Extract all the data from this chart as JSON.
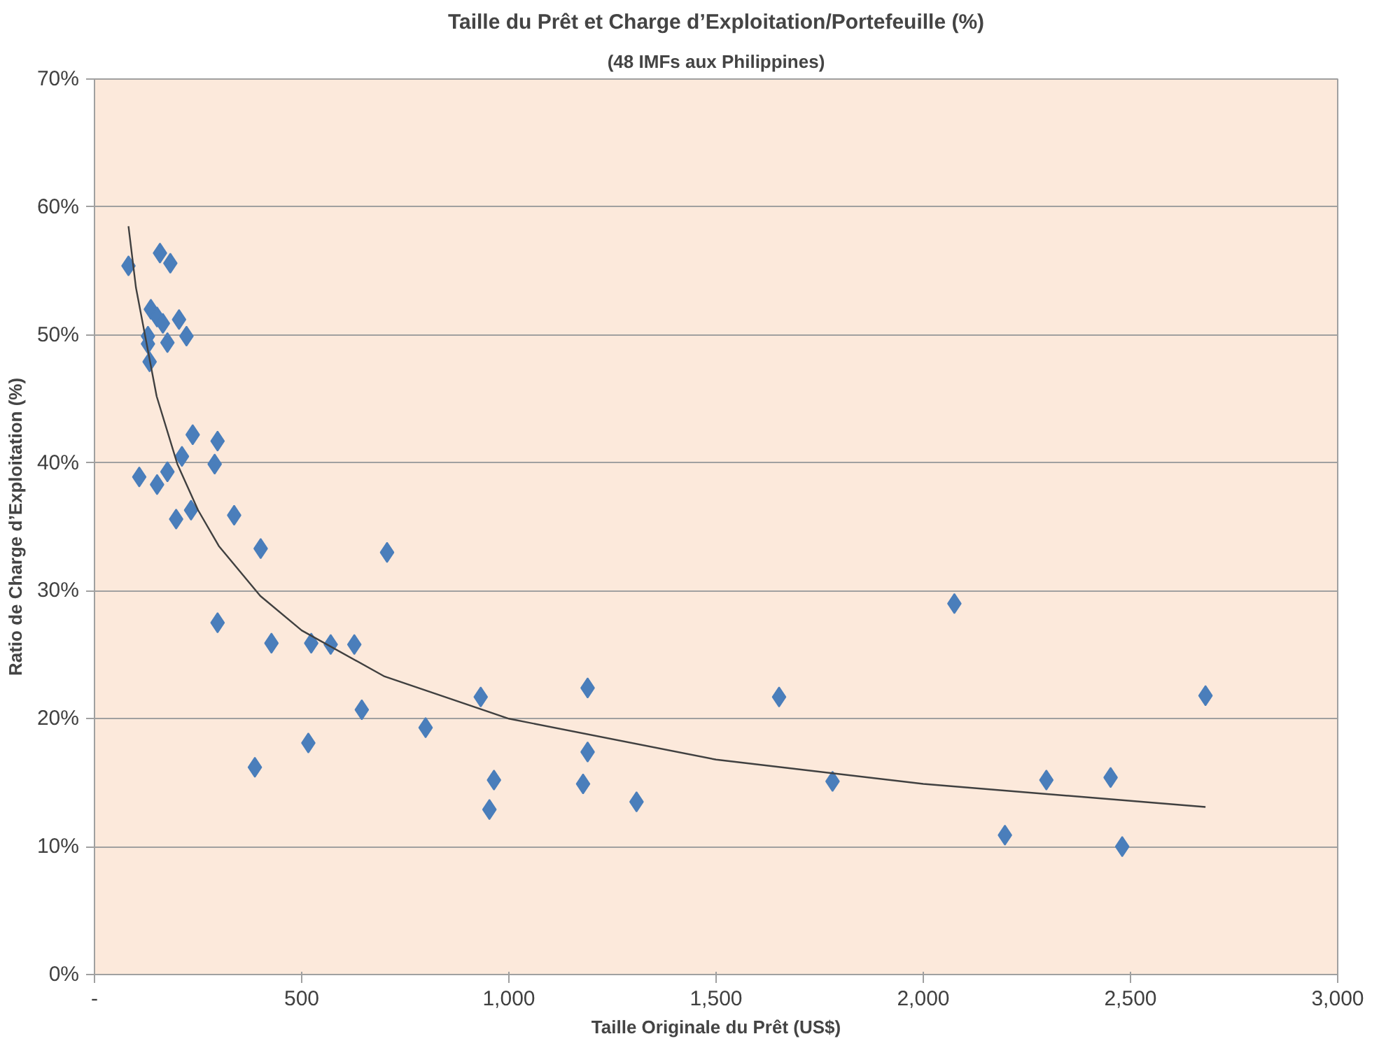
{
  "chart_data": {
    "type": "scatter",
    "title": "Taille du Prêt et Charge d’Exploitation/Portefeuille (%)",
    "subtitle": "(48 IMFs aux Philippines)",
    "xlabel": "Taille Originale du Prêt (US$)",
    "ylabel": "Ratio de Charge d’Exploitation (%)",
    "grid": "y",
    "xlim": [
      0,
      3000
    ],
    "xticks": [
      {
        "value": 0,
        "label": "-"
      },
      {
        "value": 500,
        "label": "500"
      },
      {
        "value": 1000,
        "label": "1,000"
      },
      {
        "value": 1500,
        "label": "1,500"
      },
      {
        "value": 2000,
        "label": "2,000"
      },
      {
        "value": 2500,
        "label": "2,500"
      },
      {
        "value": 3000,
        "label": "3,000"
      }
    ],
    "ylim": [
      0,
      70
    ],
    "yticks": [
      {
        "value": 0,
        "label": "0%"
      },
      {
        "value": 10,
        "label": "10%"
      },
      {
        "value": 20,
        "label": "20%"
      },
      {
        "value": 30,
        "label": "30%"
      },
      {
        "value": 40,
        "label": "40%"
      },
      {
        "value": 50,
        "label": "50%"
      },
      {
        "value": 60,
        "label": "60%"
      },
      {
        "value": 70,
        "label": "70%"
      }
    ],
    "series": [
      {
        "marker": "diamond",
        "color": "#4a7ebb",
        "x": [
          82,
          158,
          183,
          136,
          151,
          165,
          204,
          129,
          129,
          176,
          222,
          133,
          108,
          151,
          176,
          237,
          211,
          297,
          290,
          197,
          233,
          337,
          401,
          706,
          297,
          427,
          523,
          570,
          627,
          645,
          799,
          516,
          387,
          953,
          964,
          932,
          1190,
          1190,
          1179,
          1308,
          1652,
          1781,
          2075,
          2197,
          2297,
          2452,
          2480,
          2681
        ],
        "values": [
          55.4,
          56.4,
          55.6,
          52.0,
          51.4,
          50.9,
          51.2,
          49.9,
          49.3,
          49.4,
          49.9,
          47.9,
          38.9,
          38.3,
          39.3,
          42.2,
          40.5,
          41.7,
          39.9,
          35.6,
          36.3,
          35.9,
          33.3,
          33.0,
          27.5,
          25.9,
          25.9,
          25.8,
          25.8,
          20.7,
          19.3,
          18.1,
          16.2,
          12.9,
          15.2,
          21.7,
          22.4,
          17.4,
          14.9,
          13.5,
          21.7,
          15.1,
          29.0,
          10.9,
          15.2,
          15.4,
          10.0,
          21.8
        ]
      },
      {
        "type": "line",
        "color": "#404040",
        "x": [
          82,
          100,
          150,
          200,
          250,
          300,
          400,
          500,
          700,
          1000,
          1500,
          2000,
          2681
        ],
        "values": [
          58.5,
          53.7,
          45.2,
          39.9,
          36.3,
          33.5,
          29.6,
          26.9,
          23.3,
          20.0,
          16.8,
          14.9,
          13.1
        ]
      }
    ]
  }
}
